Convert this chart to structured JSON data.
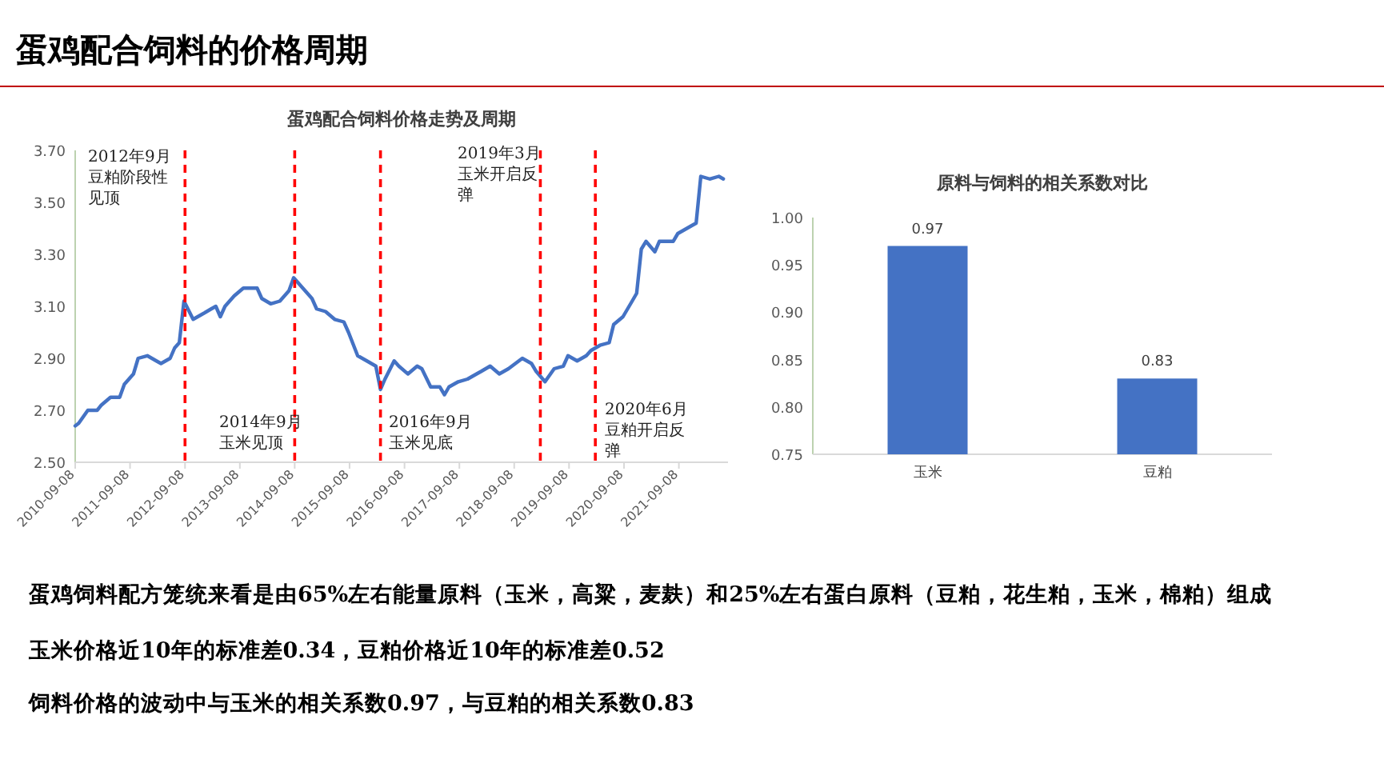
{
  "chart_data": [
    {
      "type": "line",
      "title": "蛋鸡配合饲料价格走势及周期",
      "x": [
        "2010-09-08",
        "2010-10",
        "2010-12",
        "2011-02",
        "2011-03",
        "2011-05",
        "2011-07",
        "2011-08",
        "2011-10",
        "2011-11",
        "2012-01",
        "2012-03",
        "2012-04",
        "2012-06",
        "2012-07",
        "2012-08",
        "2012-09",
        "2012-11",
        "2013-01",
        "2013-03",
        "2013-04",
        "2013-05",
        "2013-06",
        "2013-08",
        "2013-10",
        "2014-01",
        "2014-02",
        "2014-04",
        "2014-06",
        "2014-08",
        "2014-09",
        "2014-11",
        "2015-01",
        "2015-02",
        "2015-04",
        "2015-06",
        "2015-08",
        "2015-09",
        "2015-11",
        "2016-01",
        "2016-03",
        "2016-04",
        "2016-05",
        "2016-07",
        "2016-08",
        "2016-10",
        "2016-12",
        "2017-01",
        "2017-03",
        "2017-05",
        "2017-06",
        "2017-07",
        "2017-09",
        "2017-11",
        "2018-01",
        "2018-02",
        "2018-04",
        "2018-06",
        "2018-08",
        "2018-11",
        "2019-01",
        "2019-02",
        "2019-04",
        "2019-06",
        "2019-08",
        "2019-09",
        "2019-11",
        "2020-01",
        "2020-02",
        "2020-04",
        "2020-06",
        "2020-07",
        "2020-09",
        "2020-11",
        "2020-12",
        "2021-01",
        "2021-02",
        "2021-04",
        "2021-05",
        "2021-08",
        "2021-09",
        "2021-12",
        "2022-01",
        "2022-02",
        "2022-04",
        "2022-06",
        "2022-07"
      ],
      "series": [
        {
          "color": "#4472c4",
          "values": [
            2.64,
            2.65,
            2.7,
            2.7,
            2.72,
            2.75,
            2.75,
            2.8,
            2.84,
            2.9,
            2.91,
            2.89,
            2.88,
            2.9,
            2.94,
            2.96,
            3.12,
            3.05,
            3.07,
            3.09,
            3.1,
            3.06,
            3.1,
            3.14,
            3.17,
            3.17,
            3.13,
            3.11,
            3.12,
            3.16,
            3.21,
            3.17,
            3.13,
            3.09,
            3.08,
            3.05,
            3.04,
            3.0,
            2.91,
            2.89,
            2.87,
            2.78,
            2.82,
            2.89,
            2.87,
            2.84,
            2.87,
            2.86,
            2.79,
            2.79,
            2.76,
            2.79,
            2.81,
            2.82,
            2.84,
            2.85,
            2.87,
            2.84,
            2.86,
            2.9,
            2.88,
            2.85,
            2.81,
            2.86,
            2.87,
            2.91,
            2.89,
            2.91,
            2.93,
            2.95,
            2.96,
            3.03,
            3.06,
            3.12,
            3.15,
            3.32,
            3.35,
            3.31,
            3.35,
            3.35,
            3.38,
            3.41,
            3.42,
            3.6,
            3.59,
            3.6,
            3.59
          ]
        }
      ],
      "xlim": [
        "2010-09-08",
        "2022-08"
      ],
      "xticks": [
        "2010-09-08",
        "2011-09-08",
        "2012-09-08",
        "2013-09-08",
        "2014-09-08",
        "2015-09-08",
        "2016-09-08",
        "2017-09-08",
        "2018-09-08",
        "2019-09-08",
        "2020-09-08",
        "2021-09-08"
      ],
      "ylim": [
        2.5,
        3.7
      ],
      "yticks": [
        {
          "value": 2.5,
          "label": "2.50"
        },
        {
          "value": 2.7,
          "label": "2.70"
        },
        {
          "value": 2.9,
          "label": "2.90"
        },
        {
          "value": 3.1,
          "label": "3.10"
        },
        {
          "value": 3.3,
          "label": "3.30"
        },
        {
          "value": 3.5,
          "label": "3.50"
        },
        {
          "value": 3.7,
          "label": "3.70"
        }
      ],
      "ref_lines": [
        {
          "axis": "x",
          "value": "2012-09-08",
          "color": "#ff0000",
          "line_style": "dashed"
        },
        {
          "axis": "x",
          "value": "2014-09-08",
          "color": "#ff0000",
          "line_style": "dashed"
        },
        {
          "axis": "x",
          "value": "2016-04",
          "color": "#ff0000",
          "line_style": "dashed"
        },
        {
          "axis": "x",
          "value": "2019-03",
          "color": "#ff0000",
          "line_style": "dashed"
        },
        {
          "axis": "x",
          "value": "2020-03",
          "color": "#ff0000",
          "line_style": "dashed"
        }
      ],
      "annotations": [
        "2012年9月豆粕阶段性见顶",
        "2014年9月玉米见顶",
        "2016年9月玉米见底",
        "2019年3月玉米开启反弹",
        "2020年6月豆粕开启反弹"
      ],
      "marker": "none",
      "line_style": "solid"
    },
    {
      "type": "bar",
      "title": "原料与饲料的相关系数对比",
      "categories": [
        "玉米",
        "豆粕"
      ],
      "values": [
        0.97,
        0.83
      ],
      "color": "#4472c4",
      "ylim": [
        0.75,
        1.0
      ],
      "yticks": [
        {
          "value": 0.75,
          "label": "0.75"
        },
        {
          "value": 0.8,
          "label": "0.80"
        },
        {
          "value": 0.85,
          "label": "0.85"
        },
        {
          "value": 0.9,
          "label": "0.90"
        },
        {
          "value": 0.95,
          "label": "0.95"
        },
        {
          "value": 1.0,
          "label": "1.00"
        }
      ],
      "data_labels": true
    },
    {
      "type": "other",
      "title": "蛋鸡配合饲料的价格周期",
      "annotations": [
        "蛋鸡饲料配方笼统来看是由65%左右能量原料（玉米，高粱，麦麸）和25%左右蛋白原料（豆粕，花生粕，玉米，棉粕）组成",
        "玉米价格近10年的标准差0.34，豆粕价格近10年的标准差0.52",
        "饲料价格的波动中与玉米的相关系数0.97，与豆粕的相关系数0.83"
      ]
    }
  ]
}
